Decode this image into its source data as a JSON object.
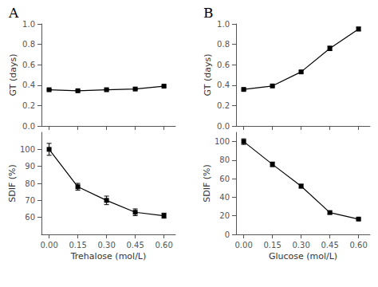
{
  "chart_data": [
    {
      "type": "line",
      "title": "A",
      "x": [
        0.0,
        0.15,
        0.3,
        0.45,
        0.6
      ],
      "values": [
        0.355,
        0.345,
        0.355,
        0.362,
        0.39
      ],
      "errors": [
        0.006,
        0.005,
        0.006,
        0.006,
        0.008
      ],
      "ylabel": "GT (days)",
      "xlim": [
        -0.04,
        0.66
      ],
      "xticks": [
        {
          "value": 0.0,
          "label": "0.00"
        },
        {
          "value": 0.15,
          "label": "0.15"
        },
        {
          "value": 0.3,
          "label": "0.30"
        },
        {
          "value": 0.45,
          "label": "0.45"
        },
        {
          "value": 0.6,
          "label": "0.60"
        }
      ],
      "ylim": [
        0.0,
        1.0
      ],
      "yticks": [
        {
          "value": 0,
          "label": "0.0"
        },
        0.2,
        0.4,
        0.6,
        0.8,
        {
          "value": 1,
          "label": "1.0"
        }
      ],
      "tick_labels": "y",
      "grid": false,
      "color": "black",
      "marker": "square",
      "line_style": "solid"
    },
    {
      "type": "line",
      "x": [
        0.0,
        0.15,
        0.3,
        0.45,
        0.6
      ],
      "values": [
        100.0,
        78.0,
        70.0,
        63.0,
        61.0
      ],
      "errors": [
        3.5,
        2.0,
        2.5,
        2.0,
        1.5
      ],
      "xlabel": "Trehalose (mol/L)",
      "ylabel": "SDIF (%)",
      "xlim": [
        -0.04,
        0.66
      ],
      "xticks": [
        {
          "value": 0.0,
          "label": "0.00"
        },
        {
          "value": 0.15,
          "label": "0.15"
        },
        {
          "value": 0.3,
          "label": "0.30"
        },
        {
          "value": 0.45,
          "label": "0.45"
        },
        {
          "value": 0.6,
          "label": "0.60"
        }
      ],
      "ylim": [
        50,
        110
      ],
      "yticks": [
        60,
        70,
        80,
        90,
        100
      ],
      "grid": false,
      "color": "black",
      "marker": "square",
      "line_style": "solid"
    },
    {
      "type": "line",
      "title": "B",
      "x": [
        0.0,
        0.15,
        0.3,
        0.45,
        0.6
      ],
      "values": [
        0.358,
        0.392,
        0.53,
        0.76,
        0.95
      ],
      "errors": [
        0.008,
        0.008,
        0.012,
        0.022,
        0.018
      ],
      "ylabel": "GT (days)",
      "xlim": [
        -0.04,
        0.66
      ],
      "xticks": [
        {
          "value": 0.0,
          "label": "0.00"
        },
        {
          "value": 0.15,
          "label": "0.15"
        },
        {
          "value": 0.3,
          "label": "0.30"
        },
        {
          "value": 0.45,
          "label": "0.45"
        },
        {
          "value": 0.6,
          "label": "0.60"
        }
      ],
      "ylim": [
        0.0,
        1.0
      ],
      "yticks": [
        {
          "value": 0,
          "label": "0.0"
        },
        0.2,
        0.4,
        0.6,
        0.8,
        {
          "value": 1,
          "label": "1.0"
        }
      ],
      "tick_labels": "y",
      "grid": false,
      "color": "black",
      "marker": "square",
      "line_style": "solid"
    },
    {
      "type": "line",
      "x": [
        0.0,
        0.15,
        0.3,
        0.45,
        0.6
      ],
      "values": [
        100.0,
        75.5,
        52.0,
        23.5,
        16.5
      ],
      "errors": [
        3.0,
        2.5,
        2.0,
        1.5,
        1.0
      ],
      "xlabel": "Glucose (mol/L)",
      "ylabel": "SDIF (%)",
      "xlim": [
        -0.04,
        0.66
      ],
      "xticks": [
        {
          "value": 0.0,
          "label": "0.00"
        },
        {
          "value": 0.15,
          "label": "0.15"
        },
        {
          "value": 0.3,
          "label": "0.30"
        },
        {
          "value": 0.45,
          "label": "0.45"
        },
        {
          "value": 0.6,
          "label": "0.60"
        }
      ],
      "ylim": [
        0,
        110
      ],
      "yticks": [
        0,
        20,
        40,
        60,
        80,
        100
      ],
      "grid": false,
      "color": "black",
      "marker": "square",
      "line_style": "solid"
    }
  ]
}
